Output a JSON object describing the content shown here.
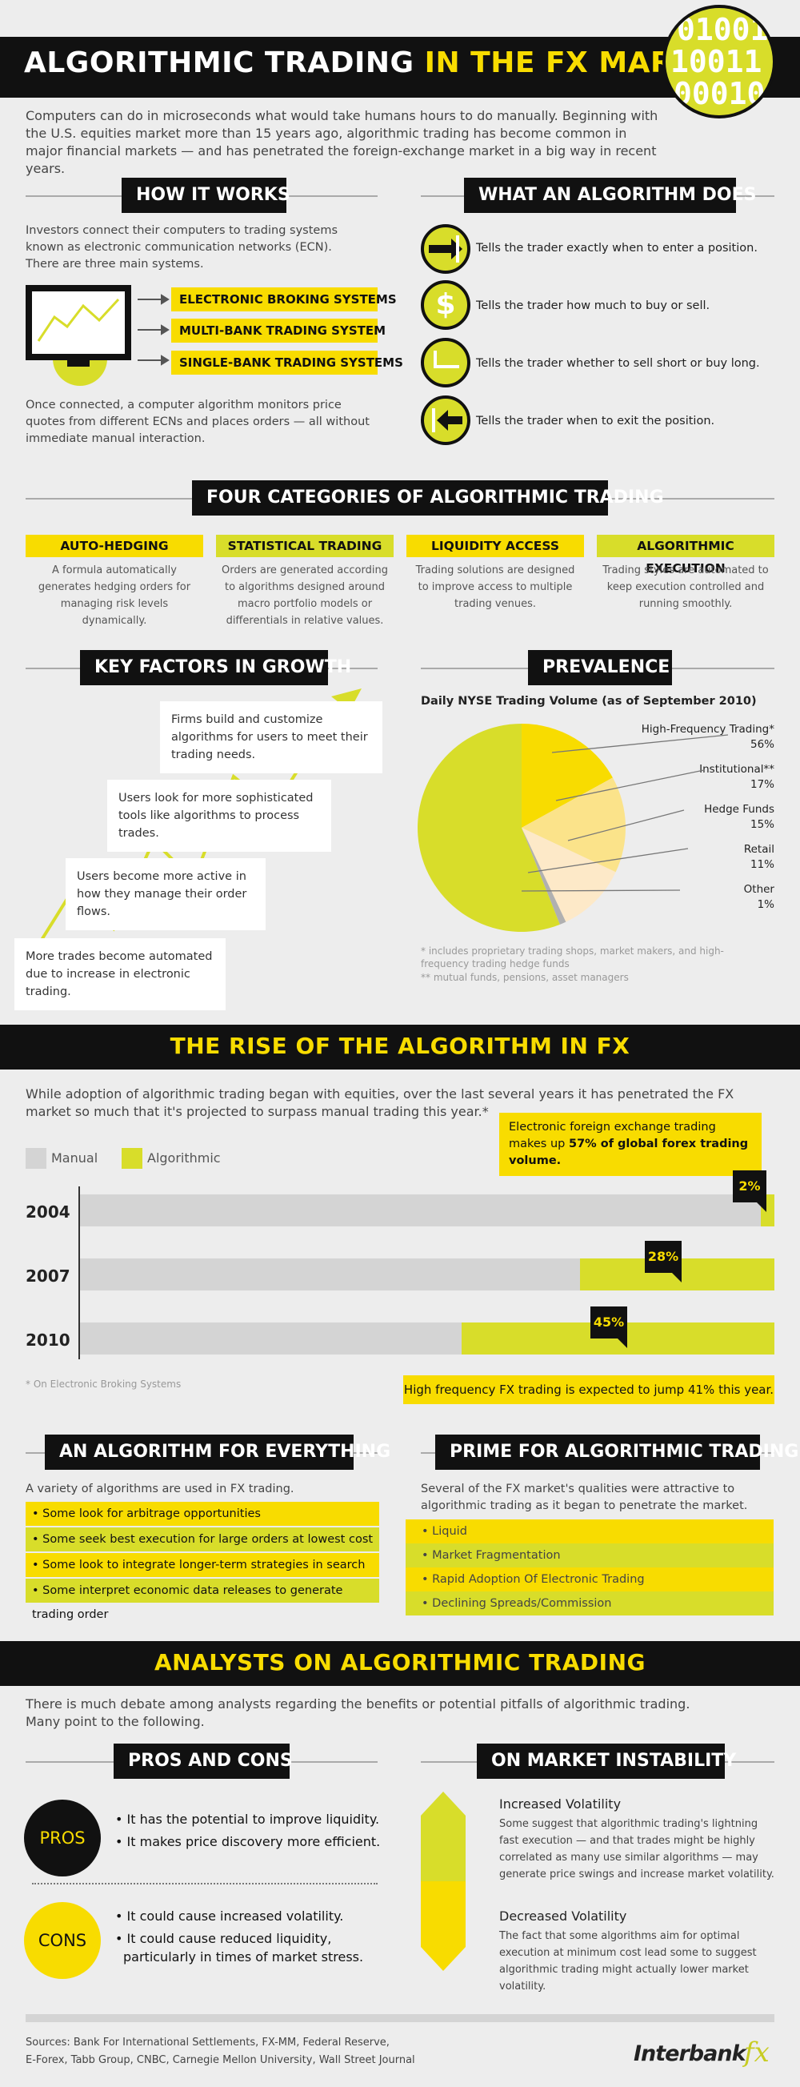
{
  "header": {
    "title_white": "ALGORITHMIC TRADING",
    "title_yellow": "IN THE FX MARKET",
    "binary": [
      "01001",
      "10011",
      "00010"
    ],
    "intro": "Computers can do in microseconds what would take humans hours to do manually. Beginning with the U.S. equities market more than 15 years ago, algorithmic trading has become common in major financial markets — and has penetrated the foreign-exchange market in a big way in recent years."
  },
  "how_it_works": {
    "title": "HOW IT WORKS",
    "text": "Investors connect their computers to trading systems known as electronic communication networks (ECN). There are three main systems.",
    "systems": [
      "ELECTRONIC BROKING SYSTEMS",
      "MULTI-BANK TRADING SYSTEM",
      "SINGLE-BANK TRADING SYSTEMS"
    ],
    "footer": "Once connected, a computer algorithm monitors price quotes from different ECNs and places orders — all without immediate manual interaction."
  },
  "algorithm_does": {
    "title": "WHAT AN ALGORITHM DOES",
    "items": [
      "Tells the trader exactly when to enter a position.",
      "Tells the trader how much to buy or sell.",
      "Tells the trader whether to sell short or buy long.",
      "Tells the trader when to exit the position."
    ]
  },
  "categories": {
    "title": "FOUR CATEGORIES OF ALGORITHMIC TRADING",
    "items": [
      {
        "name": "AUTO-HEDGING",
        "desc": "A formula automatically generates hedging orders for managing risk levels dynamically.",
        "color": "#f8dc00"
      },
      {
        "name": "STATISTICAL TRADING",
        "desc": "Orders are generated according to algorithms designed around macro portfolio models or differentials in relative values.",
        "color": "#d8dd2a"
      },
      {
        "name": "LIQUIDITY ACCESS",
        "desc": "Trading solutions are designed to improve access to multiple trading venues.",
        "color": "#f8dc00"
      },
      {
        "name": "ALGORITHMIC EXECUTION",
        "desc": "Trading styles are automated to keep execution controlled and running smoothly.",
        "color": "#d8dd2a"
      }
    ]
  },
  "growth": {
    "title": "KEY FACTORS IN GROWTH",
    "items": [
      "Firms build and customize algorithms for users to meet their trading needs.",
      "Users look for more sophisticated tools like algorithms to process trades.",
      "Users become more active in how they manage their order flows.",
      "More trades become automated due to increase in electronic trading."
    ]
  },
  "prevalence": {
    "title": "PREVALENCE",
    "chart_title": "Daily NYSE Trading Volume (as of September 2010)",
    "labels": [
      {
        "name": "High-Frequency Trading*",
        "value": "56%"
      },
      {
        "name": "Institutional**",
        "value": "17%"
      },
      {
        "name": "Hedge Funds",
        "value": "15%"
      },
      {
        "name": "Retail",
        "value": "11%"
      },
      {
        "name": "Other",
        "value": "1%"
      }
    ],
    "note1": "* includes proprietary trading shops, market makers, and high-frequency trading hedge funds",
    "note2": "** mutual funds, pensions, asset managers"
  },
  "chart_data": [
    {
      "type": "pie",
      "title": "Daily NYSE Trading Volume (as of September 2010)",
      "categories": [
        "High-Frequency Trading*",
        "Institutional**",
        "Hedge Funds",
        "Retail",
        "Other"
      ],
      "values": [
        56,
        17,
        15,
        11,
        1
      ],
      "colors": [
        "#d8dd2a",
        "#f8dc00",
        "#fbe38a",
        "#fde9c8",
        "#b0b0b0"
      ]
    },
    {
      "type": "bar",
      "categories": [
        "2004",
        "2007",
        "2010"
      ],
      "series": [
        {
          "name": "Manual",
          "values": [
            98,
            72,
            55
          ]
        },
        {
          "name": "Algorithmic",
          "values": [
            2,
            28,
            45
          ]
        }
      ],
      "stacked": true,
      "horizontal": true
    }
  ],
  "rise": {
    "title": "THE RISE OF THE ALGORITHM IN FX",
    "intro": "While adoption of algorithmic trading began with equities, over the last several years it has penetrated the FX market so much that it's projected to surpass manual trading this year.*",
    "legend_manual": "Manual",
    "legend_algo": "Algorithmic",
    "highlight_pre": "Electronic foreign exchange trading makes up ",
    "highlight_bold": "57% of global forex trading volume.",
    "years": [
      {
        "year": "2004",
        "algo_pct": "2%",
        "algo": 2
      },
      {
        "year": "2007",
        "algo_pct": "28%",
        "algo": 28
      },
      {
        "year": "2010",
        "algo_pct": "45%",
        "algo": 45
      }
    ],
    "footnote": "* On Electronic Broking Systems",
    "bottom_note": "High frequency FX trading is expected to jump 41% this year."
  },
  "everything": {
    "title": "AN ALGORITHM FOR EVERYTHING",
    "text": "A variety of algorithms are used in FX trading.",
    "items": [
      "• Some look for arbitrage opportunities",
      "• Some seek best execution for large orders at lowest cost",
      "• Some look to integrate longer-term strategies in search of profits",
      "• Some interpret economic data releases to generate trading order"
    ]
  },
  "prime": {
    "title": "PRIME FOR ALGORITHMIC TRADING",
    "text": "Several of the FX market's qualities were attractive to algorithmic trading as it began to penetrate the market.",
    "items": [
      "• Liquid",
      "• Market Fragmentation",
      "• Rapid Adoption Of Electronic Trading",
      "• Declining Spreads/Commission"
    ]
  },
  "analysts": {
    "title": "ANALYSTS ON ALGORITHMIC TRADING",
    "intro": "There is much debate among analysts regarding the benefits or potential pitfalls of algorithmic trading. Many point to the following."
  },
  "proscons": {
    "title": "PROS AND CONS",
    "pros_label": "PROS",
    "pros": [
      "• It has the potential to improve liquidity.",
      "• It makes price discovery more efficient."
    ],
    "cons_label": "CONS",
    "cons": [
      "• It could cause increased volatility.",
      "• It could cause reduced liquidity,",
      "particularly in times of market stress."
    ]
  },
  "instability": {
    "title": "ON MARKET INSTABILITY",
    "inc_title": "Increased Volatility",
    "inc_text": "Some suggest that algorithmic trading's lightning fast execution — and that trades might be highly correlated as many use similar algorithms — may generate price swings and increase market volatility.",
    "dec_title": "Decreased Volatility",
    "dec_text": "The fact that some algorithms aim for optimal execution at minimum cost lead some to suggest algorithmic trading might actually lower market volatility."
  },
  "footer": {
    "sources": "Sources: Bank For International Settlements, FX-MM, Federal Reserve,",
    "sources2": "E-Forex, Tabb Group, CNBC, Carnegie Mellon University, Wall Street Journal",
    "logo_main": "Interbank",
    "logo_fx": "fx"
  }
}
